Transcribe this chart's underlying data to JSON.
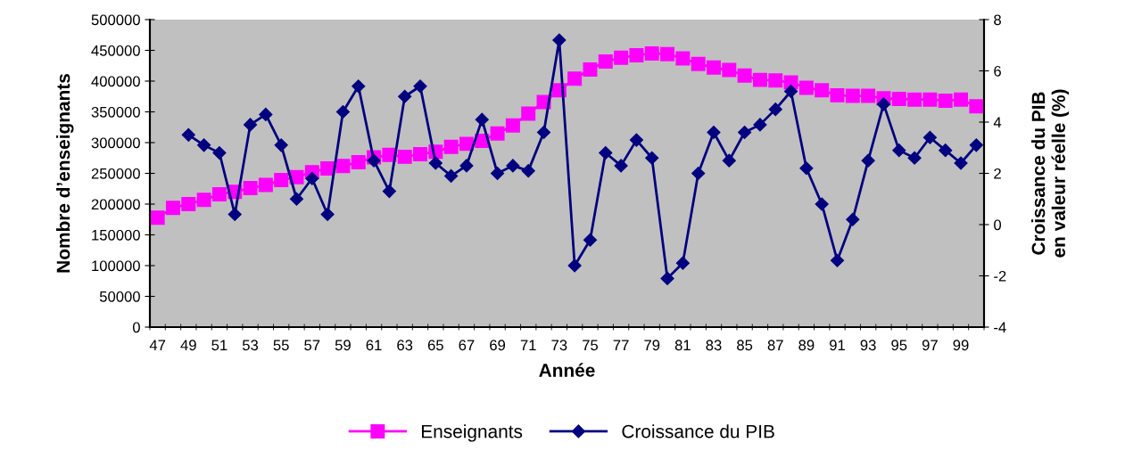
{
  "chart_data": {
    "type": "line",
    "xlabel": "Année",
    "ylabel": "Nombre d’enseignants",
    "y2label": "Croissance du PIB\nen valeur réelle (%)",
    "categories": [
      "47",
      null,
      "49",
      null,
      "51",
      null,
      "53",
      null,
      "55",
      null,
      "57",
      null,
      "59",
      null,
      "61",
      null,
      "63",
      null,
      "65",
      null,
      "67",
      null,
      "69",
      null,
      "71",
      null,
      "73",
      null,
      "75",
      null,
      "77",
      null,
      "79",
      null,
      "81",
      null,
      "83",
      null,
      "85",
      null,
      "87",
      null,
      "89",
      null,
      "91",
      null,
      "93",
      null,
      "95",
      null,
      "97",
      null,
      "99",
      null
    ],
    "series": [
      {
        "name": "Enseignants",
        "color": "#ff00ff",
        "marker": "square",
        "values": [
          178000,
          194000,
          200000,
          207000,
          216000,
          220000,
          226000,
          231000,
          239000,
          244000,
          252000,
          258000,
          262000,
          268000,
          276000,
          280000,
          277000,
          281000,
          285000,
          293000,
          298000,
          303000,
          315000,
          328000,
          347000,
          366000,
          385000,
          404000,
          419000,
          432000,
          438000,
          442000,
          445000,
          444000,
          437000,
          428000,
          422000,
          418000,
          409000,
          402000,
          401000,
          398000,
          389000,
          385000,
          377000,
          376000,
          376000,
          372000,
          371000,
          370000,
          370000,
          368000,
          370000,
          359000
        ]
      },
      {
        "name": "Croissance du PIB",
        "color": "#000080",
        "marker": "diamond",
        "axis": "y2",
        "values": [
          null,
          null,
          3.5,
          3.1,
          2.8,
          0.4,
          3.9,
          4.3,
          3.1,
          1.0,
          1.8,
          0.4,
          4.4,
          5.4,
          2.5,
          1.3,
          5.0,
          5.4,
          2.4,
          1.9,
          2.3,
          4.1,
          2.0,
          2.3,
          2.1,
          3.6,
          7.2,
          -1.6,
          -0.6,
          2.8,
          2.3,
          3.3,
          2.6,
          -2.1,
          -1.5,
          2.0,
          3.6,
          2.5,
          3.6,
          3.9,
          4.5,
          5.2,
          2.2,
          0.8,
          -1.4,
          0.2,
          2.5,
          4.7,
          2.9,
          2.6,
          3.4,
          2.9,
          2.4,
          3.1
        ]
      }
    ],
    "ylim": [
      0,
      500000
    ],
    "yticks": [
      0,
      50000,
      100000,
      150000,
      200000,
      250000,
      300000,
      350000,
      400000,
      450000,
      500000
    ],
    "y2lim": [
      -4,
      8
    ],
    "y2ticks": [
      -4,
      -2,
      0,
      2,
      4,
      6,
      8
    ],
    "grid": false,
    "legend": "bottom"
  }
}
